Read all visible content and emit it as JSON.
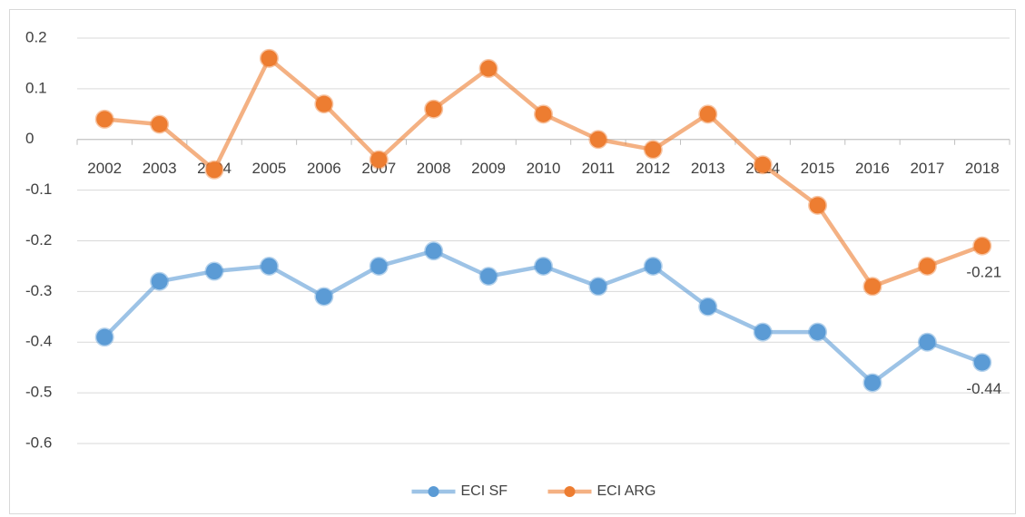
{
  "chart_data": {
    "type": "line",
    "categories": [
      "2002",
      "2003",
      "2004",
      "2005",
      "2006",
      "2007",
      "2008",
      "2009",
      "2010",
      "2011",
      "2012",
      "2013",
      "2014",
      "2015",
      "2016",
      "2017",
      "2018"
    ],
    "series": [
      {
        "name": "ECI SF",
        "color": "#5b9bd5",
        "values": [
          -0.39,
          -0.28,
          -0.26,
          -0.25,
          -0.31,
          -0.25,
          -0.22,
          -0.27,
          -0.25,
          -0.29,
          -0.25,
          -0.33,
          -0.38,
          -0.38,
          -0.48,
          -0.4,
          -0.44
        ]
      },
      {
        "name": "ECI ARG",
        "color": "#ed7d31",
        "values": [
          0.04,
          0.03,
          -0.06,
          0.16,
          0.07,
          -0.04,
          0.06,
          0.14,
          0.05,
          0.0,
          -0.02,
          0.05,
          -0.05,
          -0.13,
          -0.29,
          -0.25,
          -0.21
        ]
      }
    ],
    "ylim": [
      -0.6,
      0.2
    ],
    "yticks": [
      0.2,
      0.1,
      0,
      -0.1,
      -0.2,
      -0.3,
      -0.4,
      -0.5,
      -0.6
    ],
    "grid": true,
    "legend": "bottom"
  }
}
